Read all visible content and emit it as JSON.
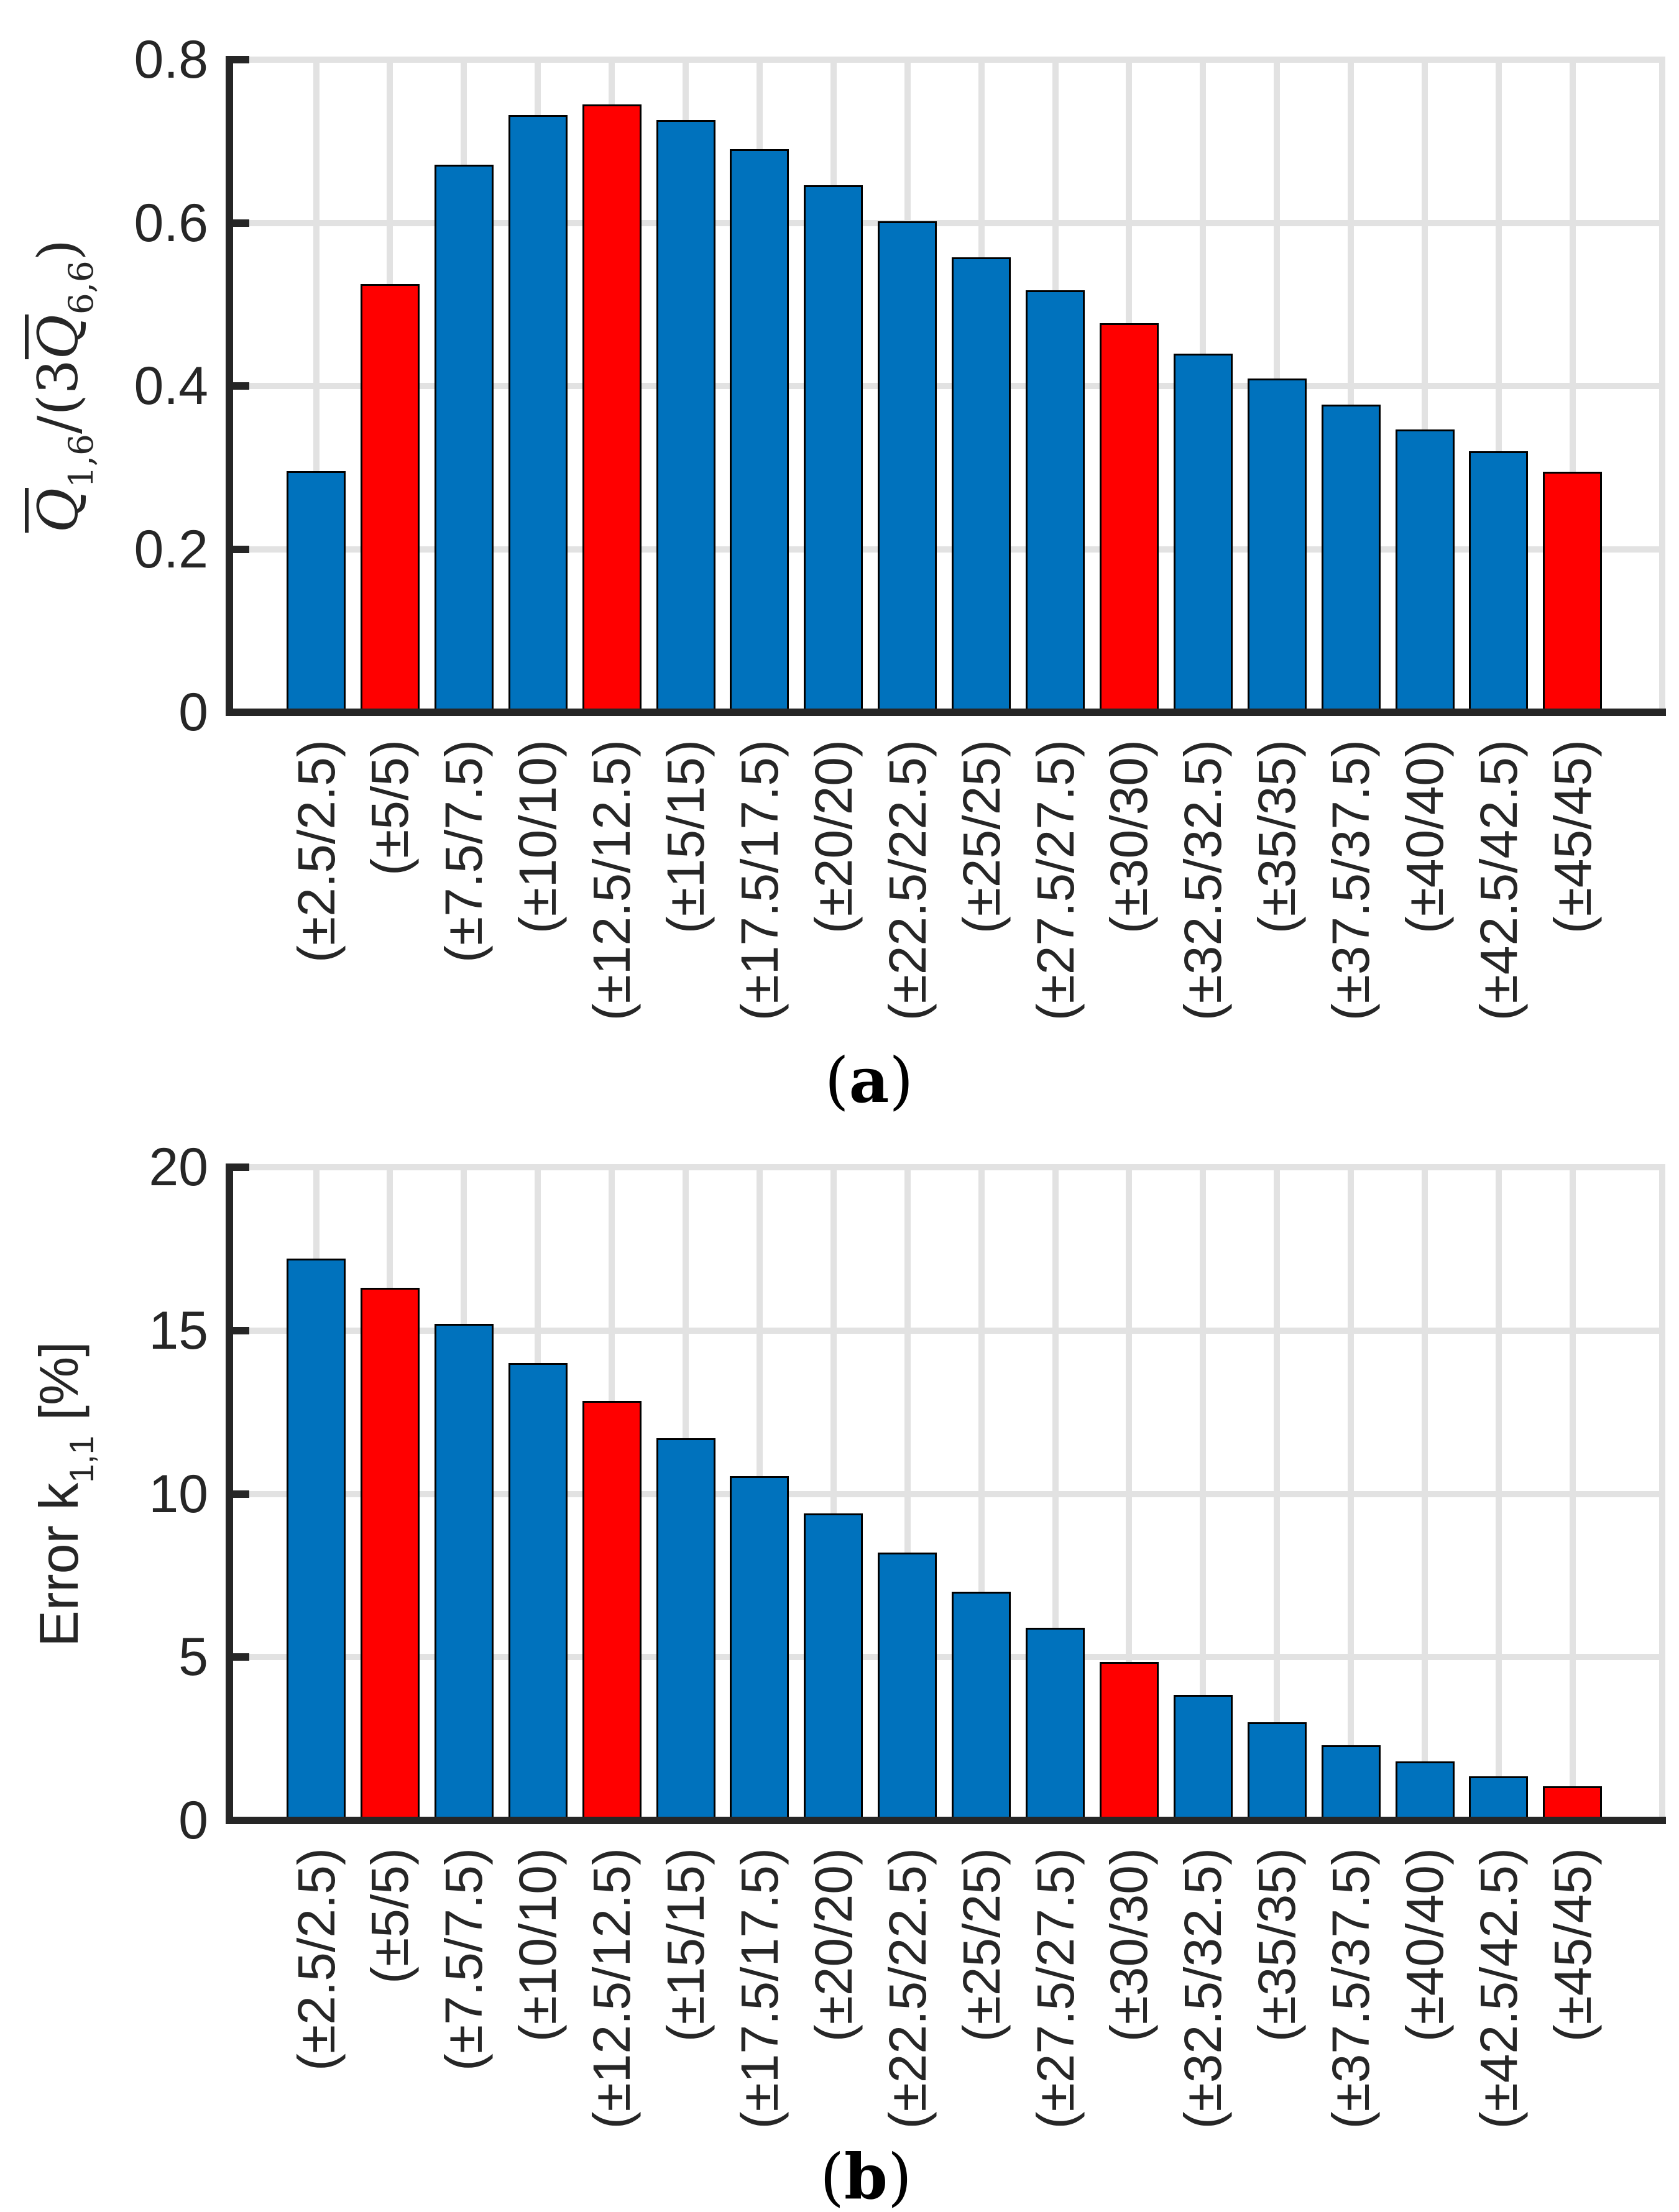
{
  "figure": {
    "captions": {
      "a": {
        "open": "(",
        "letter": "a",
        "close": ")"
      },
      "b": {
        "open": "(",
        "letter": "b",
        "close": ")"
      }
    }
  },
  "colors": {
    "bar_default": "#0072BD",
    "bar_highlight": "#FF0000",
    "bar_edge": "#000000",
    "axis": "#262626",
    "grid": "#E2E2E2",
    "background": "#FFFFFF",
    "text": "#262626"
  },
  "categories": [
    "(±2.5/2.5)",
    "(±5/5)",
    "(±7.5/7.5)",
    "(±10/10)",
    "(±12.5/12.5)",
    "(±15/15)",
    "(±17.5/17.5)",
    "(±20/20)",
    "(±22.5/22.5)",
    "(±25/25)",
    "(±27.5/27.5)",
    "(±30/30)",
    "(±32.5/32.5)",
    "(±35/35)",
    "(±37.5/37.5)",
    "(±40/40)",
    "(±42.5/42.5)",
    "(±45/45)"
  ],
  "chart_data": [
    {
      "type": "bar",
      "panel": "a",
      "title": "",
      "xlabel": "",
      "ylabel": "Q̄1,6/(3Q̄6,6)",
      "ylabel_parts": [
        {
          "text": "Q",
          "style": "qbar"
        },
        {
          "text": "1,6",
          "style": "sub"
        },
        {
          "text": "/(3",
          "style": "plain"
        },
        {
          "text": "Q",
          "style": "qbar"
        },
        {
          "text": "6,6",
          "style": "sub"
        },
        {
          "text": ")",
          "style": "plain"
        }
      ],
      "ylim": [
        0,
        0.8
      ],
      "yticks": [
        0,
        0.2,
        0.4,
        0.6,
        0.8
      ],
      "ytick_labels": [
        "0",
        "0.2",
        "0.4",
        "0.6",
        "0.8"
      ],
      "grid": true,
      "legend": null,
      "values": [
        0.296,
        0.525,
        0.671,
        0.732,
        0.745,
        0.726,
        0.69,
        0.646,
        0.602,
        0.558,
        0.517,
        0.477,
        0.44,
        0.409,
        0.377,
        0.347,
        0.32,
        0.295
      ],
      "highlight_indices": [
        1,
        4,
        11,
        17
      ]
    },
    {
      "type": "bar",
      "panel": "b",
      "title": "",
      "xlabel": "",
      "ylabel": "Error k1,1 [%]",
      "ylabel_parts": [
        {
          "text": "Error k",
          "style": "plain"
        },
        {
          "text": "1,1",
          "style": "sub"
        },
        {
          "text": " [%]",
          "style": "plain"
        }
      ],
      "ylim": [
        0,
        20
      ],
      "yticks": [
        0,
        5,
        10,
        15,
        20
      ],
      "ytick_labels": [
        "0",
        "5",
        "10",
        "15",
        "20"
      ],
      "grid": true,
      "legend": null,
      "values": [
        17.2,
        16.3,
        15.2,
        14.0,
        12.85,
        11.7,
        10.55,
        9.4,
        8.2,
        7.0,
        5.9,
        4.85,
        3.85,
        3.0,
        2.3,
        1.8,
        1.35,
        1.05
      ],
      "highlight_indices": [
        1,
        4,
        11,
        17
      ]
    }
  ]
}
